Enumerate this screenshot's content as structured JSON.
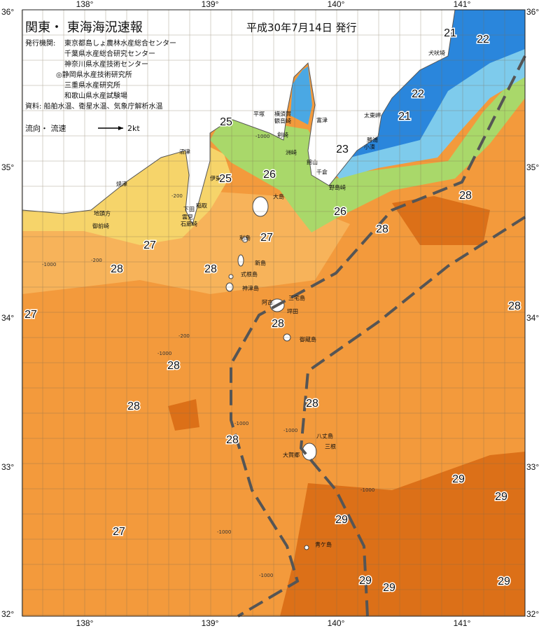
{
  "header": {
    "title": "関東・ 東海海況速報",
    "date": "平成30年7月14日 発行"
  },
  "issuers": {
    "label": "発行機関:",
    "agencies": [
      "東京都島しょ農林水産総合センター",
      "千葉県水産総合研究センター",
      "神奈川県水産技術センター",
      "◎静岡県水産技術研究所",
      "三重県水産研究所",
      "和歌山県水産試験場"
    ]
  },
  "sources": "資料: 船舶水温、衛星水温、気象庁解析水温",
  "current_legend": {
    "label": "流向・ 流速",
    "speed": "2kt"
  },
  "axes": {
    "lon": [
      "138°",
      "139°",
      "140°",
      "141°"
    ],
    "lat": [
      "36°",
      "35°",
      "34°",
      "33°",
      "32°"
    ]
  },
  "places": [
    "平塚",
    "横須賀",
    "観音崎",
    "剣崎",
    "富津",
    "洲崎",
    "館山",
    "千倉",
    "野島崎",
    "小湊",
    "勝浦",
    "太東岬",
    "犬吠埼",
    "沼津",
    "焼津",
    "地頭方",
    "御前崎",
    "石廊崎",
    "下田",
    "雲見",
    "稲取",
    "伊東",
    "大島",
    "利島",
    "新島",
    "式根島",
    "神津島",
    "三宅島",
    "阿古",
    "坪田",
    "御蔵島",
    "八丈島",
    "大賀郷",
    "三根",
    "青ケ島"
  ],
  "isotherm_labels": [
    21,
    22,
    22,
    21,
    25,
    23,
    26,
    25,
    26,
    28,
    28,
    27,
    27,
    28,
    28,
    27,
    28,
    28,
    28,
    28,
    28,
    28,
    29,
    29,
    29,
    27,
    29,
    29,
    29
  ],
  "depth_labels": [
    "-1000",
    "-200"
  ]
}
